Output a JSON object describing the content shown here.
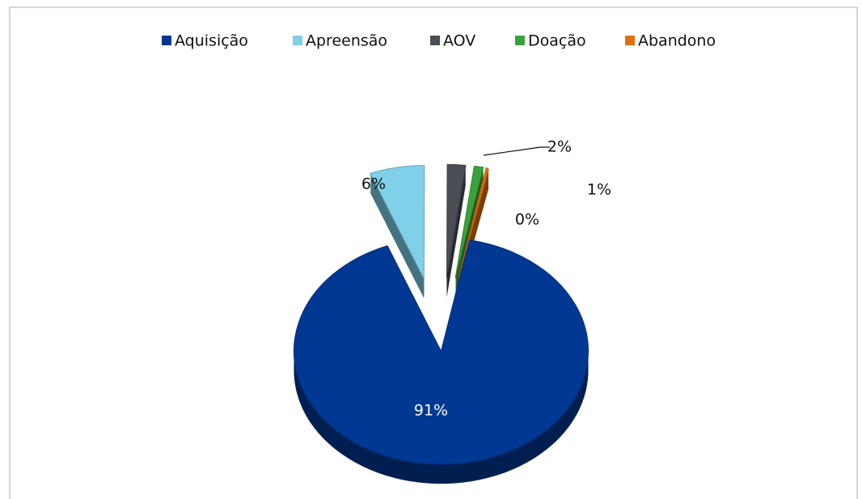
{
  "chart_data": {
    "type": "pie",
    "categories": [
      "Aquisição",
      "Apreensão",
      "AOV",
      "Doação",
      "Abandono"
    ],
    "values": [
      91,
      6,
      2,
      1,
      0
    ],
    "value_labels": [
      "91%",
      "6%",
      "2%",
      "1%",
      "0%"
    ],
    "colors": [
      "#003893",
      "#7fd0e8",
      "#4a4d55",
      "#3aa23a",
      "#e0700f"
    ],
    "legend": "top"
  }
}
